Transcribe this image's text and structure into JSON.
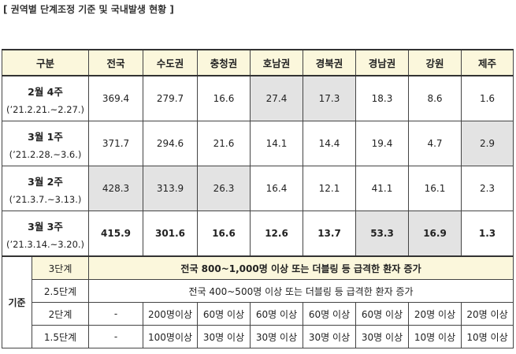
{
  "caption": "[ 권역별 단계조정 기준 및 국내발생 현황 ]",
  "header": {
    "label": "구분",
    "regions": [
      "전국",
      "수도권",
      "충청권",
      "호남권",
      "경북권",
      "경남권",
      "강원",
      "제주"
    ]
  },
  "weeks": [
    {
      "title": "2월 4주",
      "range": "(’21.2.21.~2.27.)",
      "values": [
        "369.4",
        "279.7",
        "16.6",
        "27.4",
        "17.3",
        "18.3",
        "8.6",
        "1.6"
      ],
      "highlighted_regions": [
        "호남권",
        "경북권"
      ],
      "bold": false
    },
    {
      "title": "3월 1주",
      "range": "(’21.2.28.~3.6.)",
      "values": [
        "371.7",
        "294.6",
        "21.6",
        "14.1",
        "14.4",
        "19.4",
        "4.7",
        "2.9"
      ],
      "highlighted_regions": [
        "제주"
      ],
      "bold": false
    },
    {
      "title": "3월 2주",
      "range": "(’21.3.7.~3.13.)",
      "values": [
        "428.3",
        "313.9",
        "26.3",
        "16.4",
        "12.1",
        "41.1",
        "16.1",
        "2.3"
      ],
      "highlighted_regions": [
        "전국",
        "수도권",
        "충청권"
      ],
      "bold": false
    },
    {
      "title": "3월 3주",
      "range": "(’21.3.14.~3.20.)",
      "values": [
        "415.9",
        "301.6",
        "16.6",
        "12.6",
        "13.7",
        "53.3",
        "16.9",
        "1.3"
      ],
      "highlighted_regions": [
        "경남권",
        "강원"
      ],
      "bold": true
    }
  ],
  "criteria": {
    "label": "기준",
    "stages": [
      {
        "stage": "3단계",
        "text": "전국 800~1,000명 이상 또는 더블링 등 급격한 환자 증가"
      },
      {
        "stage": "2.5단계",
        "text": "전국 400~500명 이상 또는 더블링 등 급격한 환자 증가"
      },
      {
        "stage": "2단계",
        "values": [
          "-",
          "200명이상",
          "60명 이상",
          "60명 이상",
          "60명 이상",
          "60명 이상",
          "20명 이상",
          "20명 이상"
        ]
      },
      {
        "stage": "1.5단계",
        "values": [
          "-",
          "100명이상",
          "30명 이상",
          "30명 이상",
          "30명 이상",
          "30명 이상",
          "10명 이상",
          "10명 이상"
        ]
      }
    ]
  },
  "colors": {
    "header_bg": "#fbf7dc",
    "highlight_bg": "#e3e3e3",
    "border": "#444444"
  }
}
